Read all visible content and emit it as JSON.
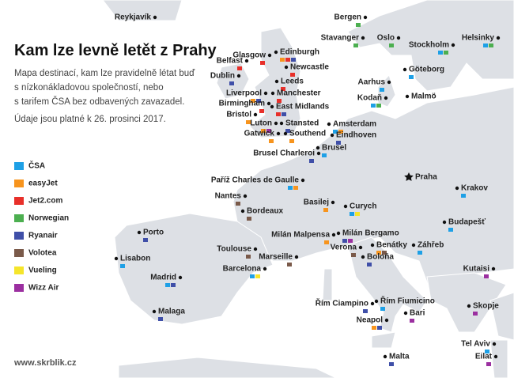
{
  "title": "Kam lze levně letět z Prahy",
  "description": [
    "Mapa destinací, kam lze pravidelně létat buď",
    "s nízkonákladovou společností, nebo",
    "s tarifem ČSA bez odbavených zavazadel."
  ],
  "note": "Údaje jsou platné k 26. prosinci 2017.",
  "legend": [
    {
      "name": "ČSA",
      "color": "#1ea0e6"
    },
    {
      "name": "easyJet",
      "color": "#f7941d"
    },
    {
      "name": "Jet2.com",
      "color": "#e8302a"
    },
    {
      "name": "Norwegian",
      "color": "#4caf50"
    },
    {
      "name": "Ryanair",
      "color": "#3f4fa8"
    },
    {
      "name": "Volotea",
      "color": "#7a5a4a"
    },
    {
      "name": "Vueling",
      "color": "#f5e52b"
    },
    {
      "name": "Wizz Air",
      "color": "#9b2fa0"
    }
  ],
  "home": "Praha",
  "cities": [
    {
      "label": "Reykjavík",
      "airlines": []
    },
    {
      "label": "Bergen",
      "airlines": [
        "Norwegian"
      ]
    },
    {
      "label": "Stavanger",
      "airlines": [
        "Norwegian"
      ]
    },
    {
      "label": "Oslo",
      "airlines": [
        "Norwegian"
      ]
    },
    {
      "label": "Stockholm",
      "airlines": [
        "ČSA",
        "Norwegian"
      ]
    },
    {
      "label": "Helsinky",
      "airlines": [
        "ČSA",
        "Norwegian"
      ]
    },
    {
      "label": "Edinburgh",
      "airlines": [
        "easyJet",
        "Jet2.com",
        "Ryanair"
      ]
    },
    {
      "label": "Glasgow",
      "airlines": [
        "Jet2.com"
      ]
    },
    {
      "label": "Belfast",
      "airlines": [
        "Jet2.com"
      ]
    },
    {
      "label": "Göteborg",
      "airlines": [
        "ČSA"
      ]
    },
    {
      "label": "Newcastle",
      "airlines": [
        "Jet2.com"
      ]
    },
    {
      "label": "Dublin",
      "airlines": [
        "Ryanair"
      ]
    },
    {
      "label": "Aarhus",
      "airlines": [
        "ČSA"
      ]
    },
    {
      "label": "Leeds",
      "airlines": [
        "Jet2.com"
      ]
    },
    {
      "label": "Liverpool",
      "airlines": [
        "easyJet",
        "Ryanair"
      ]
    },
    {
      "label": "Manchester",
      "airlines": [
        "Jet2.com"
      ]
    },
    {
      "label": "Kodaň",
      "airlines": [
        "ČSA",
        "Norwegian"
      ]
    },
    {
      "label": "Malmö",
      "airlines": []
    },
    {
      "label": "Birmingham",
      "airlines": [
        "Jet2.com"
      ]
    },
    {
      "label": "East Midlands",
      "airlines": [
        "Jet2.com",
        "Ryanair"
      ]
    },
    {
      "label": "Bristol",
      "airlines": [
        "easyJet"
      ]
    },
    {
      "label": "Luton",
      "airlines": [
        "easyJet",
        "Wizz Air"
      ]
    },
    {
      "label": "Stansted",
      "airlines": [
        "Ryanair"
      ]
    },
    {
      "label": "Amsterdam",
      "airlines": [
        "ČSA",
        "easyJet"
      ]
    },
    {
      "label": "Gatwick",
      "airlines": [
        "easyJet"
      ]
    },
    {
      "label": "Southend",
      "airlines": [
        "easyJet"
      ]
    },
    {
      "label": "Eindhoven",
      "airlines": [
        "Ryanair"
      ]
    },
    {
      "label": "Brusel",
      "airlines": [
        "ČSA"
      ]
    },
    {
      "label": "Brusel Charleroi",
      "airlines": [
        "Ryanair"
      ]
    },
    {
      "label": "Paříž Charles de Gaulle",
      "airlines": [
        "ČSA",
        "easyJet"
      ]
    },
    {
      "label": "Krakov",
      "airlines": [
        "ČSA"
      ]
    },
    {
      "label": "Nantes",
      "airlines": [
        "Volotea"
      ]
    },
    {
      "label": "Basilej",
      "airlines": [
        "easyJet"
      ]
    },
    {
      "label": "Curych",
      "airlines": [
        "ČSA",
        "Vueling"
      ]
    },
    {
      "label": "Bordeaux",
      "airlines": [
        "Volotea"
      ]
    },
    {
      "label": "Budapešť",
      "airlines": [
        "ČSA"
      ]
    },
    {
      "label": "Porto",
      "airlines": [
        "Ryanair"
      ]
    },
    {
      "label": "Milán Malpensa",
      "airlines": [
        "easyJet"
      ]
    },
    {
      "label": "Milán Bergamo",
      "airlines": [
        "Ryanair",
        "Wizz Air"
      ]
    },
    {
      "label": "Toulouse",
      "airlines": [
        "Volotea"
      ]
    },
    {
      "label": "Verona",
      "airlines": [
        "Volotea"
      ]
    },
    {
      "label": "Benátky",
      "airlines": [
        "easyJet",
        "Volotea"
      ]
    },
    {
      "label": "Záhřeb",
      "airlines": [
        "ČSA"
      ]
    },
    {
      "label": "Marseille",
      "airlines": [
        "Volotea"
      ]
    },
    {
      "label": "Boloňa",
      "airlines": [
        "Ryanair"
      ]
    },
    {
      "label": "Lisabon",
      "airlines": [
        "ČSA"
      ]
    },
    {
      "label": "Barcelona",
      "airlines": [
        "ČSA",
        "Vueling"
      ]
    },
    {
      "label": "Kutaisi",
      "airlines": [
        "Wizz Air"
      ]
    },
    {
      "label": "Madrid",
      "airlines": [
        "ČSA",
        "Ryanair"
      ]
    },
    {
      "label": "Řím Ciampino",
      "airlines": [
        "Ryanair"
      ]
    },
    {
      "label": "Řím Fiumicino",
      "airlines": [
        "ČSA"
      ]
    },
    {
      "label": "Skopje",
      "airlines": [
        "Wizz Air"
      ]
    },
    {
      "label": "Malaga",
      "airlines": [
        "Ryanair"
      ]
    },
    {
      "label": "Neapol",
      "airlines": [
        "easyJet",
        "Ryanair"
      ]
    },
    {
      "label": "Bari",
      "airlines": [
        "Wizz Air"
      ]
    },
    {
      "label": "Tel Aviv",
      "airlines": [
        "ČSA"
      ]
    },
    {
      "label": "Malta",
      "airlines": [
        "Ryanair"
      ]
    },
    {
      "label": "Eilat",
      "airlines": [
        "Wizz Air"
      ]
    }
  ],
  "footer": "www.skrblik.cz"
}
